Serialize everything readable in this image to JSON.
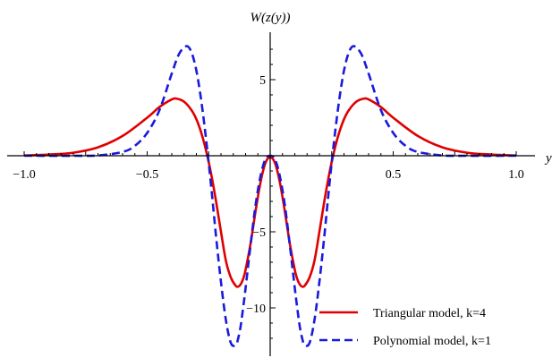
{
  "chart_data": {
    "type": "line",
    "title": "",
    "xlabel": "y",
    "ylabel": "W(z(y))",
    "xlim": [
      -1.0,
      1.0
    ],
    "ylim": [
      -13.0,
      8.8
    ],
    "x_ticks": [
      -1.0,
      -0.5,
      0.5,
      1.0
    ],
    "x_tick_labels": [
      "−1.0",
      "−0.5",
      "0.5",
      "1.0"
    ],
    "y_ticks": [
      5,
      -5,
      -10
    ],
    "y_tick_labels": [
      "5",
      "−5",
      "−10"
    ],
    "grid": false,
    "legend_position": "bottom-right",
    "series": [
      {
        "name": "Triangular model, k=4",
        "color": "#e00000",
        "dash": "solid",
        "x": [
          -1.0,
          -0.9,
          -0.8,
          -0.7,
          -0.6,
          -0.5,
          -0.45,
          -0.4,
          -0.38,
          -0.35,
          -0.32,
          -0.3,
          -0.28,
          -0.26,
          -0.24,
          -0.22,
          -0.2,
          -0.18,
          -0.16,
          -0.14,
          -0.13,
          -0.12,
          -0.11,
          -0.1,
          -0.08,
          -0.06,
          -0.04,
          -0.02,
          0.0,
          0.02,
          0.04,
          0.06,
          0.08,
          0.1,
          0.11,
          0.12,
          0.13,
          0.14,
          0.16,
          0.18,
          0.2,
          0.22,
          0.24,
          0.26,
          0.28,
          0.3,
          0.32,
          0.35,
          0.38,
          0.4,
          0.45,
          0.5,
          0.6,
          0.7,
          0.8,
          0.9,
          1.0
        ],
        "values": [
          0.02,
          0.08,
          0.2,
          0.55,
          1.3,
          2.5,
          3.2,
          3.7,
          3.75,
          3.55,
          3.0,
          2.4,
          1.5,
          0.3,
          -1.2,
          -3.0,
          -5.0,
          -6.9,
          -8.0,
          -8.55,
          -8.6,
          -8.45,
          -8.1,
          -7.5,
          -5.8,
          -3.7,
          -1.8,
          -0.5,
          -0.1,
          -0.5,
          -1.8,
          -3.7,
          -5.8,
          -7.5,
          -8.1,
          -8.45,
          -8.6,
          -8.55,
          -8.0,
          -6.9,
          -5.0,
          -3.0,
          -1.2,
          0.3,
          1.5,
          2.4,
          3.0,
          3.55,
          3.75,
          3.7,
          3.2,
          2.5,
          1.3,
          0.55,
          0.2,
          0.08,
          0.02
        ]
      },
      {
        "name": "Polynomial model, k=1",
        "color": "#1a1adc",
        "dash": "dashed",
        "x": [
          -1.0,
          -0.8,
          -0.7,
          -0.6,
          -0.55,
          -0.5,
          -0.45,
          -0.4,
          -0.37,
          -0.34,
          -0.32,
          -0.3,
          -0.28,
          -0.26,
          -0.24,
          -0.22,
          -0.2,
          -0.18,
          -0.16,
          -0.14,
          -0.13,
          -0.12,
          -0.11,
          -0.1,
          -0.08,
          -0.06,
          -0.04,
          -0.02,
          0.0,
          0.02,
          0.04,
          0.06,
          0.08,
          0.1,
          0.11,
          0.12,
          0.13,
          0.14,
          0.16,
          0.18,
          0.2,
          0.22,
          0.24,
          0.26,
          0.28,
          0.3,
          0.32,
          0.34,
          0.37,
          0.4,
          0.45,
          0.5,
          0.55,
          0.6,
          0.7,
          0.8,
          1.0
        ],
        "values": [
          0.0,
          0.0,
          0.02,
          0.25,
          0.65,
          1.5,
          3.0,
          5.4,
          6.7,
          7.2,
          6.8,
          5.6,
          3.6,
          1.0,
          -2.0,
          -5.3,
          -8.3,
          -10.8,
          -12.3,
          -12.45,
          -12.0,
          -11.2,
          -10.0,
          -8.7,
          -5.9,
          -3.3,
          -1.4,
          -0.25,
          0.0,
          -0.25,
          -1.4,
          -3.3,
          -5.9,
          -8.7,
          -10.0,
          -11.2,
          -12.0,
          -12.45,
          -12.3,
          -10.8,
          -8.3,
          -5.3,
          -2.0,
          1.0,
          3.6,
          5.6,
          6.8,
          7.2,
          6.7,
          5.4,
          3.0,
          1.5,
          0.65,
          0.25,
          0.02,
          0.0,
          0.0
        ]
      }
    ]
  }
}
